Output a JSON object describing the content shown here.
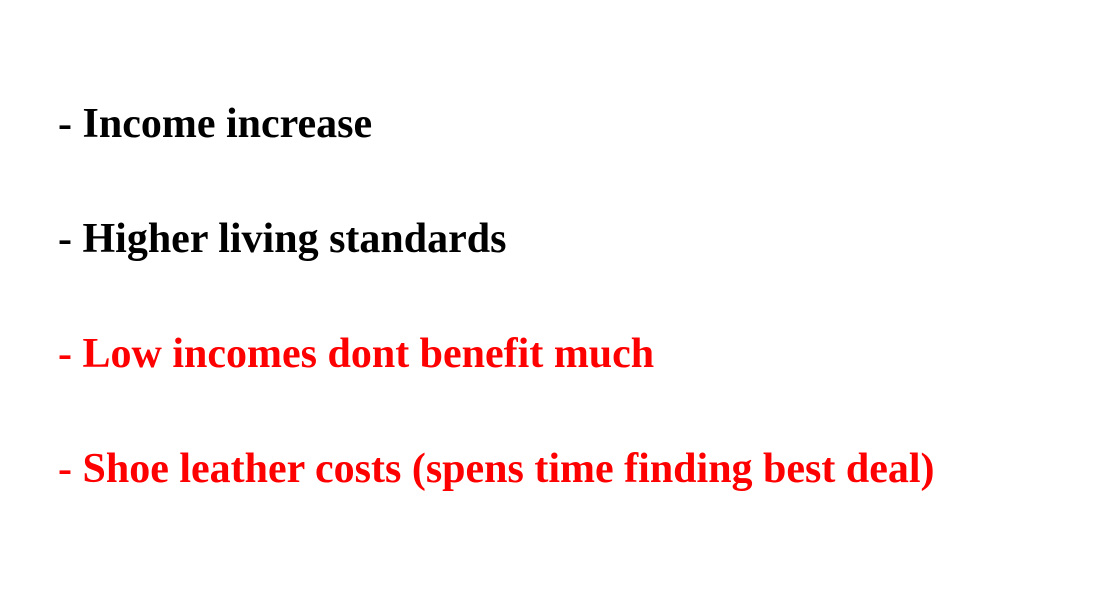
{
  "bullets": [
    {
      "text": "- Income increase",
      "color": "#000000"
    },
    {
      "text": "- Higher living standards",
      "color": "#000000"
    },
    {
      "text": "- Low incomes dont benefit much",
      "color": "#ff0000"
    },
    {
      "text": "- Shoe leather costs (spens time finding best deal)",
      "color": "#ff0000"
    }
  ]
}
